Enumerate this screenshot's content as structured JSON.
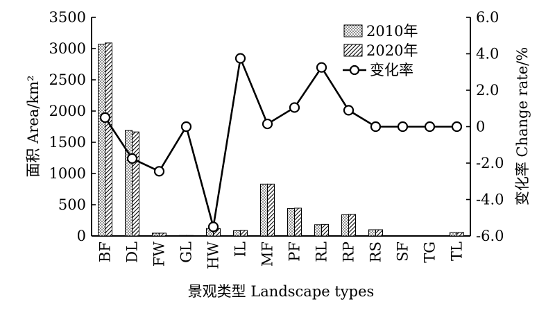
{
  "chart_data": {
    "type": "bar",
    "categories": [
      "BF",
      "DL",
      "FW",
      "GL",
      "HW",
      "IL",
      "MF",
      "PF",
      "RL",
      "RP",
      "RS",
      "SF",
      "TG",
      "TL"
    ],
    "series": [
      {
        "name": "2010年",
        "kind": "bar",
        "axis": "left",
        "pattern": "dots",
        "values": [
          3070,
          1690,
          45,
          8,
          120,
          85,
          830,
          440,
          180,
          340,
          100,
          5,
          4,
          55
        ]
      },
      {
        "name": "2020年",
        "kind": "bar",
        "axis": "left",
        "pattern": "hatch",
        "values": [
          3090,
          1665,
          45,
          8,
          118,
          88,
          830,
          445,
          185,
          345,
          100,
          5,
          4,
          55
        ]
      },
      {
        "name": "变化率",
        "kind": "line",
        "axis": "right",
        "marker": "circle",
        "values": [
          0.5,
          -1.75,
          -2.45,
          0.0,
          -5.5,
          3.75,
          0.15,
          1.05,
          3.25,
          0.9,
          0.0,
          0.0,
          0.0,
          0.0
        ]
      }
    ],
    "xlabel": "景观类型 Landscape types",
    "ylabel_left": "面积 Area/km²",
    "ylabel_right": "变化率 Change rate/%",
    "ylim_left": [
      0,
      3500
    ],
    "ylim_right": [
      -6,
      6
    ],
    "yticks_left": [
      "0",
      "500",
      "1000",
      "1500",
      "2000",
      "2500",
      "3000",
      "3500"
    ],
    "yticks_right": [
      "-6.0",
      "-4.0",
      "-2.0",
      "0",
      "2.0",
      "4.0",
      "6.0"
    ],
    "legend_position": "top-right",
    "grid": false
  }
}
